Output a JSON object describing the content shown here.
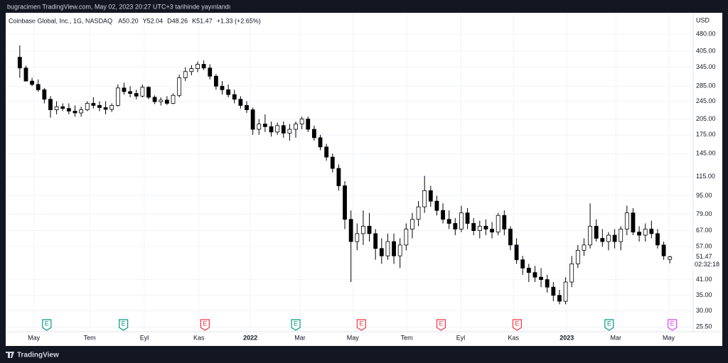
{
  "header": {
    "text": "bugracimen TradingView.com, May 02, 2023 20:27 UTC+3 tarihinde yayınlandı"
  },
  "footer": {
    "brand": "TradingView"
  },
  "chart_data": {
    "type": "candlestick",
    "currency": "USD",
    "log_scale": true,
    "grid": true,
    "color": "#000000",
    "legend": {
      "symbol": "Coinbase Global, Inc., 1G, NASDAQ",
      "values": [
        "A50.20",
        "Y52.04",
        "D48.26",
        "K51.47"
      ],
      "change": "+1.33 (+2.65%)"
    },
    "last_price": {
      "value": 51.47,
      "label": "51.47",
      "countdown": "02:32:18"
    },
    "ylim": [
      24.3,
      595
    ],
    "xlim": [
      -2.3,
      109.8
    ],
    "yticks": [
      {
        "value": 480,
        "label": "480.00"
      },
      {
        "value": 405,
        "label": "405.00"
      },
      {
        "value": 345,
        "label": "345.00"
      },
      {
        "value": 285,
        "label": "285.00"
      },
      {
        "value": 245,
        "label": "245.00"
      },
      {
        "value": 205,
        "label": "205.00"
      },
      {
        "value": 175,
        "label": "175.00"
      },
      {
        "value": 145,
        "label": "145.00"
      },
      {
        "value": 115,
        "label": "115.00"
      },
      {
        "value": 95,
        "label": "95.00"
      },
      {
        "value": 79,
        "label": "79.00"
      },
      {
        "value": 67,
        "label": "67.00"
      },
      {
        "value": 57,
        "label": "57.00"
      },
      {
        "value": 41,
        "label": "41.00"
      },
      {
        "value": 35,
        "label": "35.00"
      },
      {
        "value": 30,
        "label": "30.00"
      },
      {
        "value": 25.5,
        "label": "25.50"
      }
    ],
    "xticks": [
      {
        "value": 2.3,
        "label": "May"
      },
      {
        "value": 11.4,
        "label": "Tem"
      },
      {
        "value": 20.3,
        "label": "Eyl"
      },
      {
        "value": 29.2,
        "label": "Kas"
      },
      {
        "value": 37.6,
        "label": "2022"
      },
      {
        "value": 45.7,
        "label": "Mar"
      },
      {
        "value": 54.3,
        "label": "May"
      },
      {
        "value": 63.1,
        "label": "Tem"
      },
      {
        "value": 71.9,
        "label": "Eyl"
      },
      {
        "value": 80.5,
        "label": "Kas"
      },
      {
        "value": 89.2,
        "label": "2023"
      },
      {
        "value": 97.2,
        "label": "Mar"
      },
      {
        "value": 105.8,
        "label": "May"
      }
    ],
    "earnings": [
      {
        "x": 4.4,
        "label": "E",
        "color": "#089981"
      },
      {
        "x": 16.9,
        "label": "E",
        "color": "#089981"
      },
      {
        "x": 30.2,
        "label": "E",
        "color": "#f23645"
      },
      {
        "x": 45.0,
        "label": "E",
        "color": "#089981"
      },
      {
        "x": 55.7,
        "label": "E",
        "color": "#f23645"
      },
      {
        "x": 68.7,
        "label": "E",
        "color": "#f23645"
      },
      {
        "x": 81.1,
        "label": "E",
        "color": "#f23645"
      },
      {
        "x": 96.1,
        "label": "E",
        "color": "#089981"
      },
      {
        "x": 106.4,
        "label": "E",
        "color": "#e040fb"
      }
    ],
    "open": [
      381,
      342,
      300,
      290,
      275,
      250,
      225,
      232,
      228,
      222,
      218,
      225,
      240,
      235,
      230,
      226,
      235,
      280,
      270,
      265,
      258,
      282,
      255,
      244,
      248,
      240,
      260,
      310,
      330,
      340,
      355,
      342,
      315,
      285,
      275,
      262,
      250,
      235,
      225,
      185,
      195,
      190,
      180,
      192,
      178,
      185,
      195,
      205,
      185,
      170,
      155,
      140,
      125,
      105,
      75,
      60,
      65,
      70,
      65,
      56,
      52,
      60,
      52,
      58,
      68,
      75,
      85,
      100,
      90,
      82,
      75,
      72,
      68,
      80,
      72,
      67,
      70,
      68,
      66,
      78,
      68,
      58,
      50,
      46,
      44,
      42,
      41,
      38,
      35,
      33,
      40,
      48,
      55,
      58,
      70,
      62,
      60,
      64,
      60,
      68,
      80,
      66,
      64,
      68,
      65,
      58,
      50.2
    ],
    "high": [
      429,
      350,
      310,
      305,
      280,
      258,
      245,
      240,
      240,
      235,
      232,
      245,
      255,
      245,
      245,
      240,
      290,
      295,
      285,
      275,
      290,
      285,
      260,
      255,
      258,
      265,
      320,
      345,
      352,
      365,
      369,
      355,
      322,
      300,
      290,
      275,
      258,
      245,
      230,
      205,
      215,
      200,
      198,
      200,
      195,
      200,
      210,
      210,
      192,
      175,
      160,
      145,
      130,
      110,
      82,
      72,
      82,
      80,
      68,
      62,
      65,
      65,
      62,
      72,
      80,
      90,
      116,
      105,
      95,
      88,
      82,
      76,
      86,
      84,
      76,
      74,
      75,
      73,
      80,
      82,
      70,
      62,
      52,
      48,
      47,
      46,
      43,
      40,
      37,
      42,
      52,
      58,
      62,
      88,
      75,
      68,
      66,
      68,
      70,
      86,
      84,
      70,
      72,
      74,
      68,
      60,
      52.04
    ],
    "low": [
      310,
      300,
      285,
      270,
      240,
      208,
      215,
      222,
      215,
      210,
      210,
      222,
      228,
      222,
      215,
      220,
      232,
      262,
      255,
      250,
      255,
      250,
      238,
      235,
      236,
      238,
      255,
      300,
      318,
      328,
      335,
      305,
      275,
      262,
      255,
      240,
      228,
      218,
      175,
      175,
      180,
      172,
      175,
      170,
      165,
      170,
      185,
      180,
      165,
      150,
      135,
      120,
      100,
      68,
      40,
      55,
      58,
      60,
      50,
      48,
      50,
      48,
      46,
      55,
      62,
      70,
      80,
      85,
      78,
      72,
      68,
      64,
      66,
      68,
      64,
      62,
      64,
      62,
      64,
      64,
      55,
      48,
      43,
      40,
      40,
      38,
      36,
      33,
      32,
      32,
      38,
      46,
      52,
      56,
      60,
      57,
      55,
      56,
      55,
      64,
      64,
      60,
      60,
      62,
      56,
      50,
      48.26
    ],
    "close": [
      342,
      300,
      290,
      275,
      250,
      225,
      232,
      228,
      222,
      218,
      225,
      240,
      235,
      230,
      226,
      235,
      280,
      270,
      265,
      258,
      282,
      255,
      244,
      248,
      240,
      260,
      310,
      330,
      340,
      355,
      342,
      315,
      285,
      275,
      262,
      250,
      235,
      225,
      185,
      195,
      190,
      180,
      192,
      178,
      185,
      195,
      205,
      185,
      170,
      155,
      140,
      125,
      105,
      75,
      60,
      65,
      70,
      65,
      56,
      52,
      60,
      52,
      58,
      68,
      75,
      85,
      100,
      90,
      82,
      75,
      72,
      68,
      80,
      72,
      67,
      70,
      68,
      66,
      78,
      68,
      58,
      50,
      46,
      44,
      42,
      41,
      38,
      35,
      33,
      40,
      48,
      55,
      58,
      70,
      62,
      60,
      64,
      60,
      68,
      80,
      66,
      64,
      68,
      65,
      58,
      52,
      51.47
    ]
  }
}
